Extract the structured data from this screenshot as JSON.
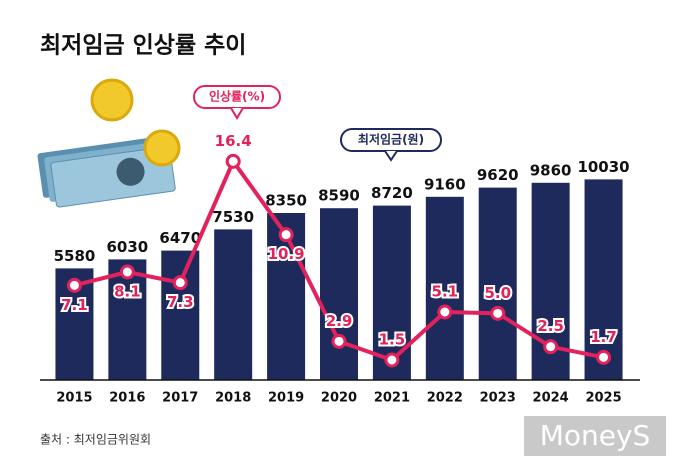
{
  "chart_data": {
    "type": "bar",
    "title": "최저임금 인상률 추이",
    "source": "출처 : 최저임금위원회",
    "watermark": "MoneyS",
    "categories": [
      "2015",
      "2016",
      "2017",
      "2018",
      "2019",
      "2020",
      "2021",
      "2022",
      "2023",
      "2024",
      "2025"
    ],
    "series": [
      {
        "name": "최저임금(원)",
        "type": "bar",
        "color": "#1f2a5c",
        "values": [
          5580,
          6030,
          6470,
          7530,
          8350,
          8590,
          8720,
          9160,
          9620,
          9860,
          10030
        ]
      },
      {
        "name": "인상률(%)",
        "type": "line",
        "axis": "y2",
        "color": "#e3225c",
        "values": [
          7.1,
          8.1,
          7.3,
          16.4,
          10.9,
          2.9,
          1.5,
          5.1,
          5.0,
          2.5,
          1.7
        ],
        "value_labels": [
          "7.1",
          "8.1",
          "7.3",
          "16.4",
          "10.9",
          "2.9",
          "1.5",
          "5.1",
          "5.0",
          "2.5",
          "1.7"
        ]
      }
    ],
    "ylim": [
      0,
      16000
    ],
    "y2lim": [
      0,
      24
    ]
  }
}
